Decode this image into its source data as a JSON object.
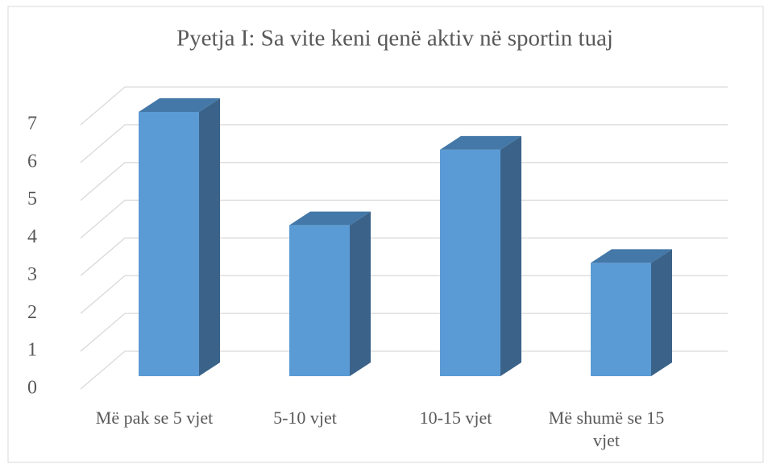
{
  "chart_data": {
    "type": "bar3d",
    "title": "Pyetja I: Sa vite keni qenë aktiv në sportin tuaj",
    "categories": [
      "Më pak se 5 vjet",
      "5-10 vjet",
      "10-15 vjet",
      "Më shumë se 15 vjet"
    ],
    "values": [
      7,
      4,
      6,
      3
    ],
    "color": "#5b9bd5",
    "ylim": [
      0,
      7
    ],
    "yticks": [
      0,
      1,
      2,
      3,
      4,
      5,
      6,
      7
    ],
    "grid": true
  }
}
